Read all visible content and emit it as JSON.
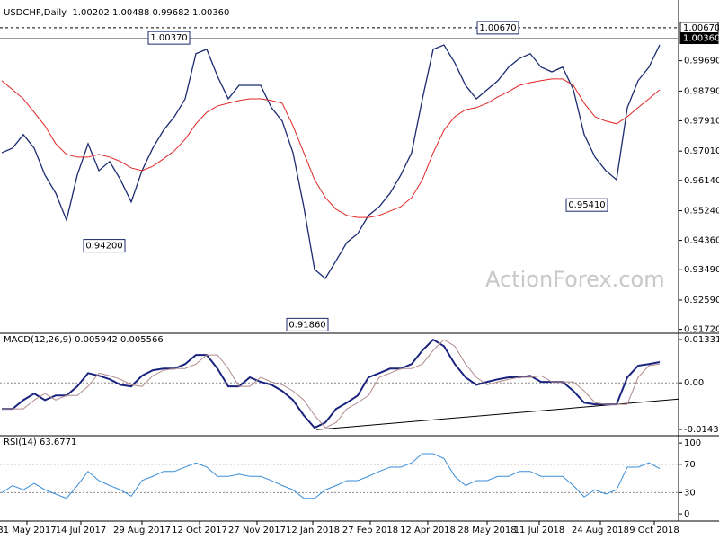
{
  "chart_data": [
    {
      "type": "line",
      "title": "USDCHF,Daily  1.00202 1.00488 0.99682 1.00360",
      "x": [
        0,
        6,
        12,
        18,
        24,
        30,
        36,
        42,
        48,
        54,
        60,
        66,
        72,
        78,
        84,
        90,
        96,
        102,
        108,
        114,
        120,
        126,
        132,
        138,
        144,
        150,
        156,
        162,
        168,
        174,
        180,
        186,
        192,
        198,
        204,
        210,
        216,
        222,
        228,
        234,
        240,
        246,
        252,
        258,
        264,
        270,
        276,
        282,
        288,
        294,
        300,
        306,
        312,
        318,
        324,
        330,
        336,
        342,
        348,
        354,
        360,
        366
      ],
      "xlim": [
        -1,
        376.5
      ],
      "ylim": [
        0.9163,
        1.0128
      ],
      "yticks": [
        {
          "value": 0.9969,
          "label": "0.99690"
        },
        {
          "value": 0.9879,
          "label": "0.98790"
        },
        {
          "value": 0.9791,
          "label": "0.97910"
        },
        {
          "value": 0.9701,
          "label": "0.97010"
        },
        {
          "value": 0.9614,
          "label": "0.96140"
        },
        {
          "value": 0.9524,
          "label": "0.95240"
        },
        {
          "value": 0.9436,
          "label": "0.94360"
        },
        {
          "value": 0.9349,
          "label": "0.93490"
        },
        {
          "value": 0.9259,
          "label": "0.92590"
        },
        {
          "value": 0.9172,
          "label": "0.91720"
        }
      ],
      "hlines": [
        {
          "value": 1.0067,
          "label": "1.00670",
          "style": "dashed"
        },
        {
          "value": 1.0036,
          "label": "1.00360",
          "style": "solid"
        }
      ],
      "annotations": [
        {
          "x": 93,
          "value": 1.0037,
          "label": "1.00370"
        },
        {
          "x": 276,
          "value": 1.0067,
          "label": "1.00670"
        },
        {
          "x": 57,
          "value": 0.942,
          "label": "0.94200"
        },
        {
          "x": 170,
          "value": 0.9186,
          "label": "0.91860"
        },
        {
          "x": 325.5,
          "value": 0.9541,
          "label": "0.95410"
        }
      ],
      "series": [
        {
          "color": "#1b2a70",
          "width": 1.3,
          "values": [
            0.9696,
            0.971,
            0.975,
            0.971,
            0.963,
            0.9576,
            0.9496,
            0.963,
            0.9723,
            0.9643,
            0.967,
            0.9616,
            0.955,
            0.9643,
            0.971,
            0.9763,
            0.9803,
            0.9856,
            0.999,
            1.0003,
            0.9923,
            0.9856,
            0.9896,
            0.9896,
            0.9896,
            0.983,
            0.979,
            0.9696,
            0.9536,
            0.935,
            0.9323,
            0.9376,
            0.943,
            0.9456,
            0.951,
            0.9536,
            0.9576,
            0.963,
            0.9696,
            0.9856,
            1.0003,
            1.0016,
            0.9963,
            0.9896,
            0.9856,
            0.9883,
            0.991,
            0.995,
            0.9976,
            0.999,
            0.995,
            0.9936,
            0.995,
            0.9883,
            0.975,
            0.9683,
            0.9643,
            0.9616,
            0.983,
            0.991,
            0.995,
            1.0016
          ]
        },
        {
          "color": "#e02424",
          "width": 1,
          "values": [
            0.991,
            0.9883,
            0.9856,
            0.9816,
            0.9776,
            0.9723,
            0.9691,
            0.9683,
            0.9683,
            0.9691,
            0.9683,
            0.967,
            0.9651,
            0.9643,
            0.9656,
            0.9678,
            0.9702,
            0.9736,
            0.9782,
            0.9816,
            0.9835,
            0.9843,
            0.9851,
            0.9856,
            0.9856,
            0.9851,
            0.9843,
            0.9776,
            0.9696,
            0.9616,
            0.9563,
            0.9528,
            0.951,
            0.9504,
            0.9504,
            0.951,
            0.9523,
            0.9536,
            0.9563,
            0.9616,
            0.9696,
            0.9763,
            0.9803,
            0.9824,
            0.983,
            0.9843,
            0.9862,
            0.9878,
            0.9896,
            0.9904,
            0.991,
            0.9915,
            0.9915,
            0.9896,
            0.9843,
            0.9803,
            0.979,
            0.9782,
            0.9803,
            0.983,
            0.9856,
            0.9883
          ]
        }
      ]
    },
    {
      "type": "line",
      "title": "MACD(12,26,9) 0.005942 0.005566",
      "ylim": [
        -0.01598,
        0.01498
      ],
      "yticks": [
        0.013319,
        {
          "value": 0,
          "label": "0.00"
        },
        -0.014323
      ],
      "level_lines": [
        0
      ],
      "trendline": {
        "x": [
          175,
          376.5
        ],
        "values": [
          -0.0144,
          -0.005
        ],
        "color": "#000000"
      },
      "series": [
        {
          "color": "#1a237e",
          "width": 2,
          "values": [
            -0.008,
            -0.008,
            -0.0053,
            -0.0033,
            -0.0053,
            -0.0039,
            -0.0039,
            -0.0011,
            0.003,
            0.0022,
            0.0011,
            -0.0006,
            -0.0011,
            0.0022,
            0.0039,
            0.0044,
            0.0044,
            0.0058,
            0.0086,
            0.0086,
            0.0044,
            -0.0011,
            -0.0011,
            0.0017,
            0.0003,
            -0.0006,
            -0.0025,
            -0.0053,
            -0.01,
            -0.0138,
            -0.0122,
            -0.008,
            -0.0061,
            -0.0039,
            0.0017,
            0.003,
            0.0044,
            0.0044,
            0.0058,
            0.01,
            0.0133,
            0.0113,
            0.0058,
            0.0017,
            -0.0006,
            0.0003,
            0.0011,
            0.0017,
            0.0017,
            0.0022,
            0.0003,
            0.0003,
            0.0003,
            -0.0025,
            -0.0061,
            -0.0066,
            -0.0066,
            -0.0066,
            0.0017,
            0.0053,
            0.0058,
            0.0064
          ]
        },
        {
          "color": "#b08a8a",
          "width": 1,
          "values": [
            -0.008,
            -0.008,
            -0.008,
            -0.0053,
            -0.0033,
            -0.0053,
            -0.0039,
            -0.0039,
            -0.0011,
            0.003,
            0.0022,
            0.0011,
            -0.0006,
            -0.0011,
            0.0022,
            0.0039,
            0.0044,
            0.0044,
            0.0058,
            0.0086,
            0.0086,
            0.0044,
            -0.0011,
            -0.0011,
            0.0017,
            0.0003,
            -0.0006,
            -0.0025,
            -0.0053,
            -0.01,
            -0.0138,
            -0.0122,
            -0.008,
            -0.0061,
            -0.0039,
            0.0017,
            0.003,
            0.0044,
            0.0044,
            0.0058,
            0.01,
            0.0133,
            0.0113,
            0.0058,
            0.0017,
            -0.0006,
            0.0003,
            0.0011,
            0.0017,
            0.0017,
            0.0022,
            0.0003,
            0.0003,
            0.0003,
            -0.0025,
            -0.0061,
            -0.0066,
            -0.0066,
            -0.0066,
            0.0017,
            0.0053,
            0.0058
          ]
        }
      ]
    },
    {
      "type": "line",
      "title": "RSI(14) 63.6771",
      "ylim": [
        -10,
        109
      ],
      "yticks": [
        100,
        70,
        30,
        0
      ],
      "level_lines": [
        70,
        30
      ],
      "xticks": [
        {
          "value": 14,
          "label": "31 May 2017"
        },
        {
          "value": 44,
          "label": "14 Jul 2017"
        },
        {
          "value": 78,
          "label": "29 Aug 2017"
        },
        {
          "value": 110,
          "label": "12 Oct 2017"
        },
        {
          "value": 142,
          "label": "27 Nov 2017"
        },
        {
          "value": 173,
          "label": "12 Jan 2018"
        },
        {
          "value": 205,
          "label": "27 Feb 2018"
        },
        {
          "value": 237,
          "label": "12 Apr 2018"
        },
        {
          "value": 270,
          "label": "28 May 2018"
        },
        {
          "value": 299,
          "label": "11 Jul 2018"
        },
        {
          "value": 333,
          "label": "24 Aug 2018"
        },
        {
          "value": 363,
          "label": "9 Oct 2018"
        }
      ],
      "series": [
        {
          "color": "#3a8ed8",
          "width": 1,
          "values": [
            30,
            40,
            34,
            43,
            34,
            28,
            22,
            40,
            60,
            47,
            40,
            34,
            25,
            47,
            53,
            60,
            60,
            66,
            72,
            66,
            53,
            53,
            56,
            53,
            53,
            47,
            40,
            34,
            22,
            22,
            34,
            40,
            47,
            47,
            53,
            60,
            66,
            66,
            72,
            85,
            85,
            78,
            53,
            40,
            47,
            47,
            53,
            53,
            60,
            60,
            53,
            53,
            53,
            40,
            24,
            34,
            28,
            34,
            66,
            66,
            72,
            64
          ]
        }
      ]
    }
  ],
  "watermark": "ActionForex.com"
}
